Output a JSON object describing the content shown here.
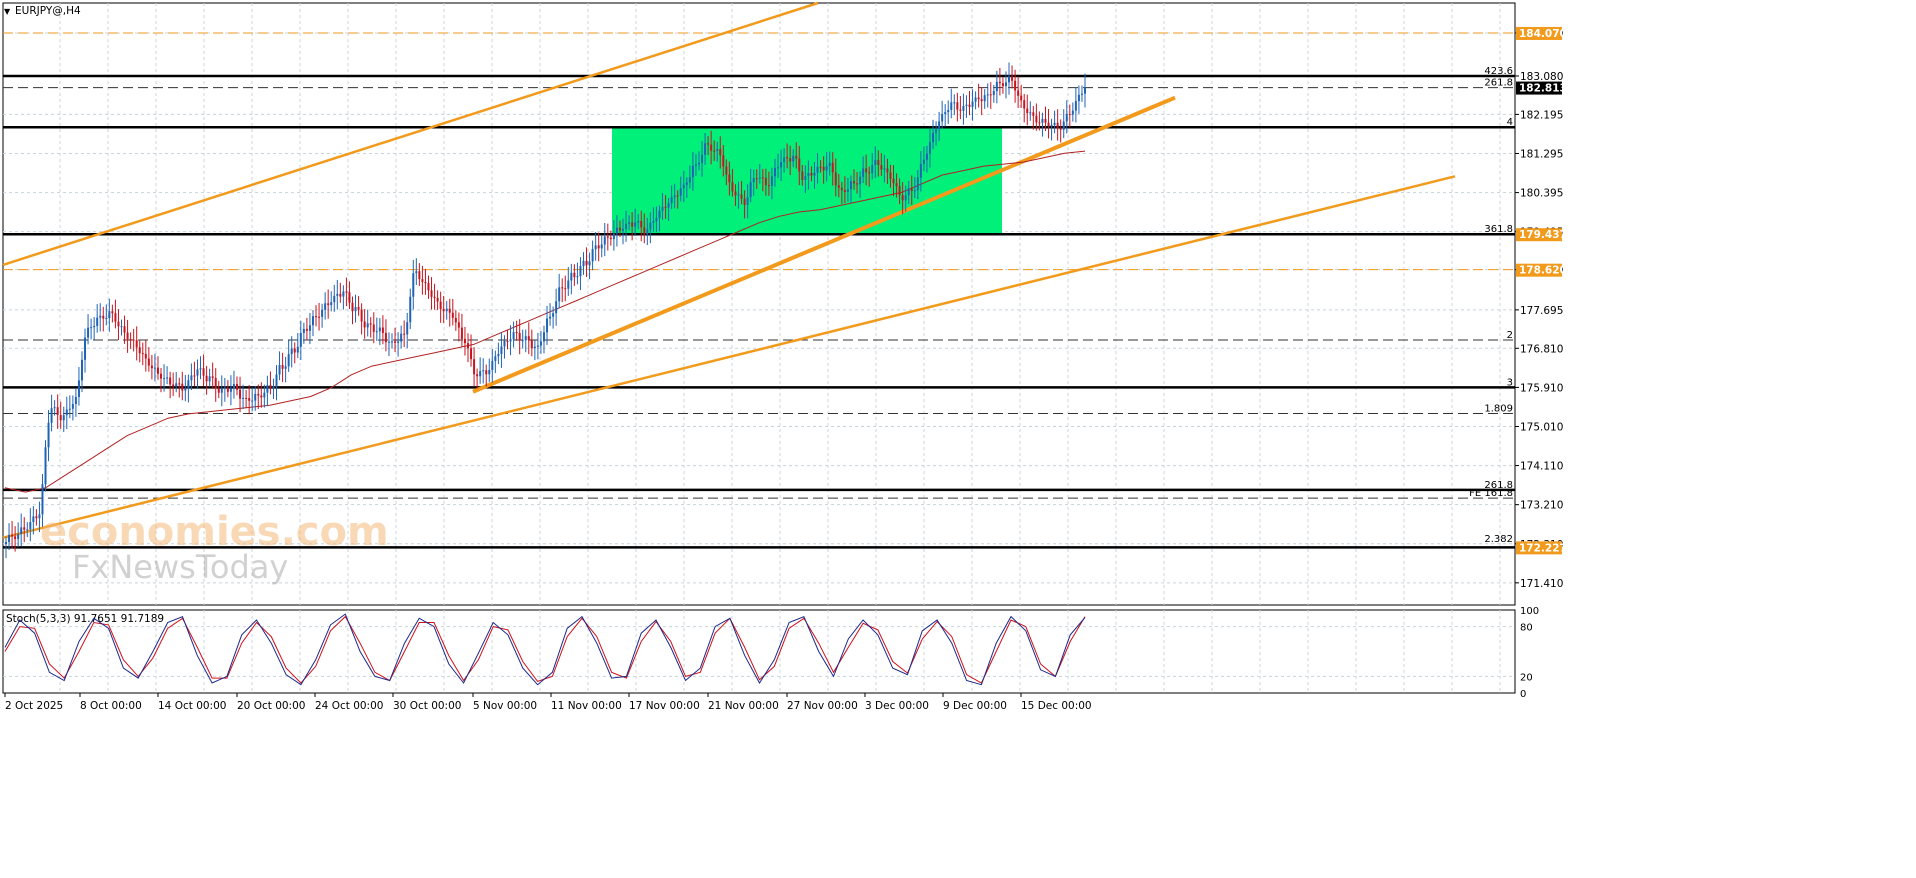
{
  "chart_data": {
    "symbol": "EURJPY@,H4",
    "type": "candlestick",
    "price_axis": {
      "labels": [
        "184.070",
        "183.080",
        "182.195",
        "181.295",
        "180.395",
        "179.495",
        "178.620",
        "177.695",
        "176.810",
        "175.910",
        "175.010",
        "174.110",
        "173.210",
        "172.310",
        "171.410"
      ],
      "range": [
        170.9,
        184.76
      ]
    },
    "time_axis": {
      "labels": [
        "2 Oct 2025",
        "8 Oct 00:00",
        "14 Oct 00:00",
        "20 Oct 00:00",
        "24 Oct 00:00",
        "30 Oct 00:00",
        "5 Nov 00:00",
        "11 Nov 00:00",
        "17 Nov 00:00",
        "21 Nov 00:00",
        "27 Nov 00:00",
        "3 Dec 00:00",
        "9 Dec 00:00",
        "15 Dec 00:00"
      ]
    },
    "price_tags": [
      {
        "price": 184.07,
        "text": "184.070",
        "color": "#f29a1c"
      },
      {
        "price": 182.813,
        "text": "182.813",
        "color": "#000000"
      },
      {
        "price": 179.437,
        "text": "179.437",
        "color": "#f29a1c"
      },
      {
        "price": 178.62,
        "text": "178.620",
        "color": "#f29a1c"
      },
      {
        "price": 172.227,
        "text": "172.227",
        "color": "#f29a1c"
      }
    ],
    "level_labels": [
      {
        "price": 183.08,
        "text": "423.6"
      },
      {
        "price": 182.813,
        "text": "261.8"
      },
      {
        "price": 181.9,
        "text": "4"
      },
      {
        "price": 179.437,
        "text": "361.8"
      },
      {
        "price": 177.0,
        "text": "2"
      },
      {
        "price": 175.91,
        "text": "3"
      },
      {
        "price": 175.31,
        "text": "1.809"
      },
      {
        "price": 173.55,
        "text": "261.8"
      },
      {
        "price": 173.36,
        "text": "FE 161.8"
      },
      {
        "price": 172.31,
        "text": "2.382"
      }
    ],
    "solid_levels": [
      183.08,
      181.9,
      179.437,
      175.91,
      173.55,
      172.227
    ],
    "dashed_black_levels": [
      182.813,
      177.0,
      175.31,
      173.36
    ],
    "dashed_orange_levels": [
      184.07,
      178.62
    ],
    "range_box": {
      "price_top": 181.9,
      "price_bottom": 179.437,
      "color": "#00f07a"
    },
    "close_series": [
      172.5,
      172.7,
      173.0,
      175.4,
      175.2,
      175.6,
      177.2,
      177.5,
      177.6,
      177.2,
      176.9,
      176.5,
      176.2,
      176.0,
      175.9,
      176.3,
      176.1,
      175.8,
      175.9,
      175.6,
      175.7,
      175.9,
      176.4,
      176.8,
      177.3,
      177.6,
      177.9,
      178.1,
      177.7,
      177.3,
      177.2,
      176.9,
      177.1,
      178.6,
      178.2,
      177.8,
      177.6,
      177.0,
      176.2,
      176.3,
      176.8,
      177.1,
      177.0,
      176.8,
      177.5,
      178.2,
      178.5,
      178.8,
      179.2,
      179.4,
      179.6,
      179.7,
      179.5,
      179.9,
      180.2,
      180.5,
      181.0,
      181.5,
      181.3,
      180.5,
      180.2,
      180.8,
      180.6,
      181.1,
      181.2,
      180.7,
      180.9,
      181.0,
      180.4,
      180.6,
      180.9,
      181.1,
      180.8,
      180.3,
      180.5,
      181.3,
      182.0,
      182.4,
      182.3,
      182.5,
      182.6,
      182.9,
      183.0,
      182.4,
      182.1,
      182.0,
      181.9,
      182.3,
      182.8
    ],
    "moving_average": [
      173.6,
      173.5,
      173.6,
      173.9,
      174.2,
      174.5,
      174.8,
      175.0,
      175.2,
      175.3,
      175.35,
      175.4,
      175.45,
      175.5,
      175.6,
      175.7,
      175.9,
      176.2,
      176.4,
      176.5,
      176.6,
      176.7,
      176.8,
      176.9,
      177.1,
      177.3,
      177.5,
      177.7,
      177.9,
      178.1,
      178.3,
      178.5,
      178.7,
      178.9,
      179.1,
      179.3,
      179.5,
      179.7,
      179.85,
      179.95,
      180.0,
      180.1,
      180.2,
      180.3,
      180.4,
      180.6,
      180.8,
      180.9,
      181.0,
      181.05,
      181.1,
      181.2,
      181.3,
      181.35
    ],
    "stochastic": {
      "label": "Stoch(5,3,3) 91.7651 91.7189",
      "scale_labels": [
        "100",
        "80",
        "20",
        "0"
      ],
      "main_series": [
        55,
        88,
        72,
        25,
        15,
        62,
        90,
        78,
        30,
        18,
        50,
        85,
        92,
        45,
        12,
        20,
        70,
        88,
        60,
        22,
        10,
        40,
        82,
        95,
        50,
        20,
        15,
        60,
        90,
        80,
        35,
        12,
        48,
        85,
        70,
        30,
        10,
        25,
        78,
        92,
        60,
        18,
        20,
        72,
        88,
        55,
        15,
        30,
        80,
        90,
        45,
        12,
        40,
        85,
        92,
        50,
        20,
        65,
        88,
        70,
        30,
        22,
        75,
        88,
        60,
        15,
        10,
        60,
        92,
        75,
        28,
        20,
        70,
        91
      ],
      "signal_series": [
        50,
        80,
        78,
        35,
        18,
        50,
        85,
        82,
        40,
        20,
        42,
        78,
        90,
        55,
        18,
        18,
        60,
        85,
        68,
        30,
        12,
        32,
        75,
        92,
        60,
        25,
        15,
        50,
        85,
        85,
        45,
        15,
        40,
        80,
        76,
        38,
        14,
        20,
        68,
        90,
        68,
        25,
        18,
        62,
        86,
        62,
        20,
        25,
        72,
        90,
        55,
        16,
        32,
        78,
        90,
        60,
        25,
        55,
        84,
        76,
        38,
        24,
        65,
        86,
        68,
        22,
        12,
        50,
        88,
        80,
        35,
        20,
        62,
        92
      ]
    },
    "watermark": {
      "line1": "economies.com",
      "line2": "FxNewsToday"
    }
  }
}
